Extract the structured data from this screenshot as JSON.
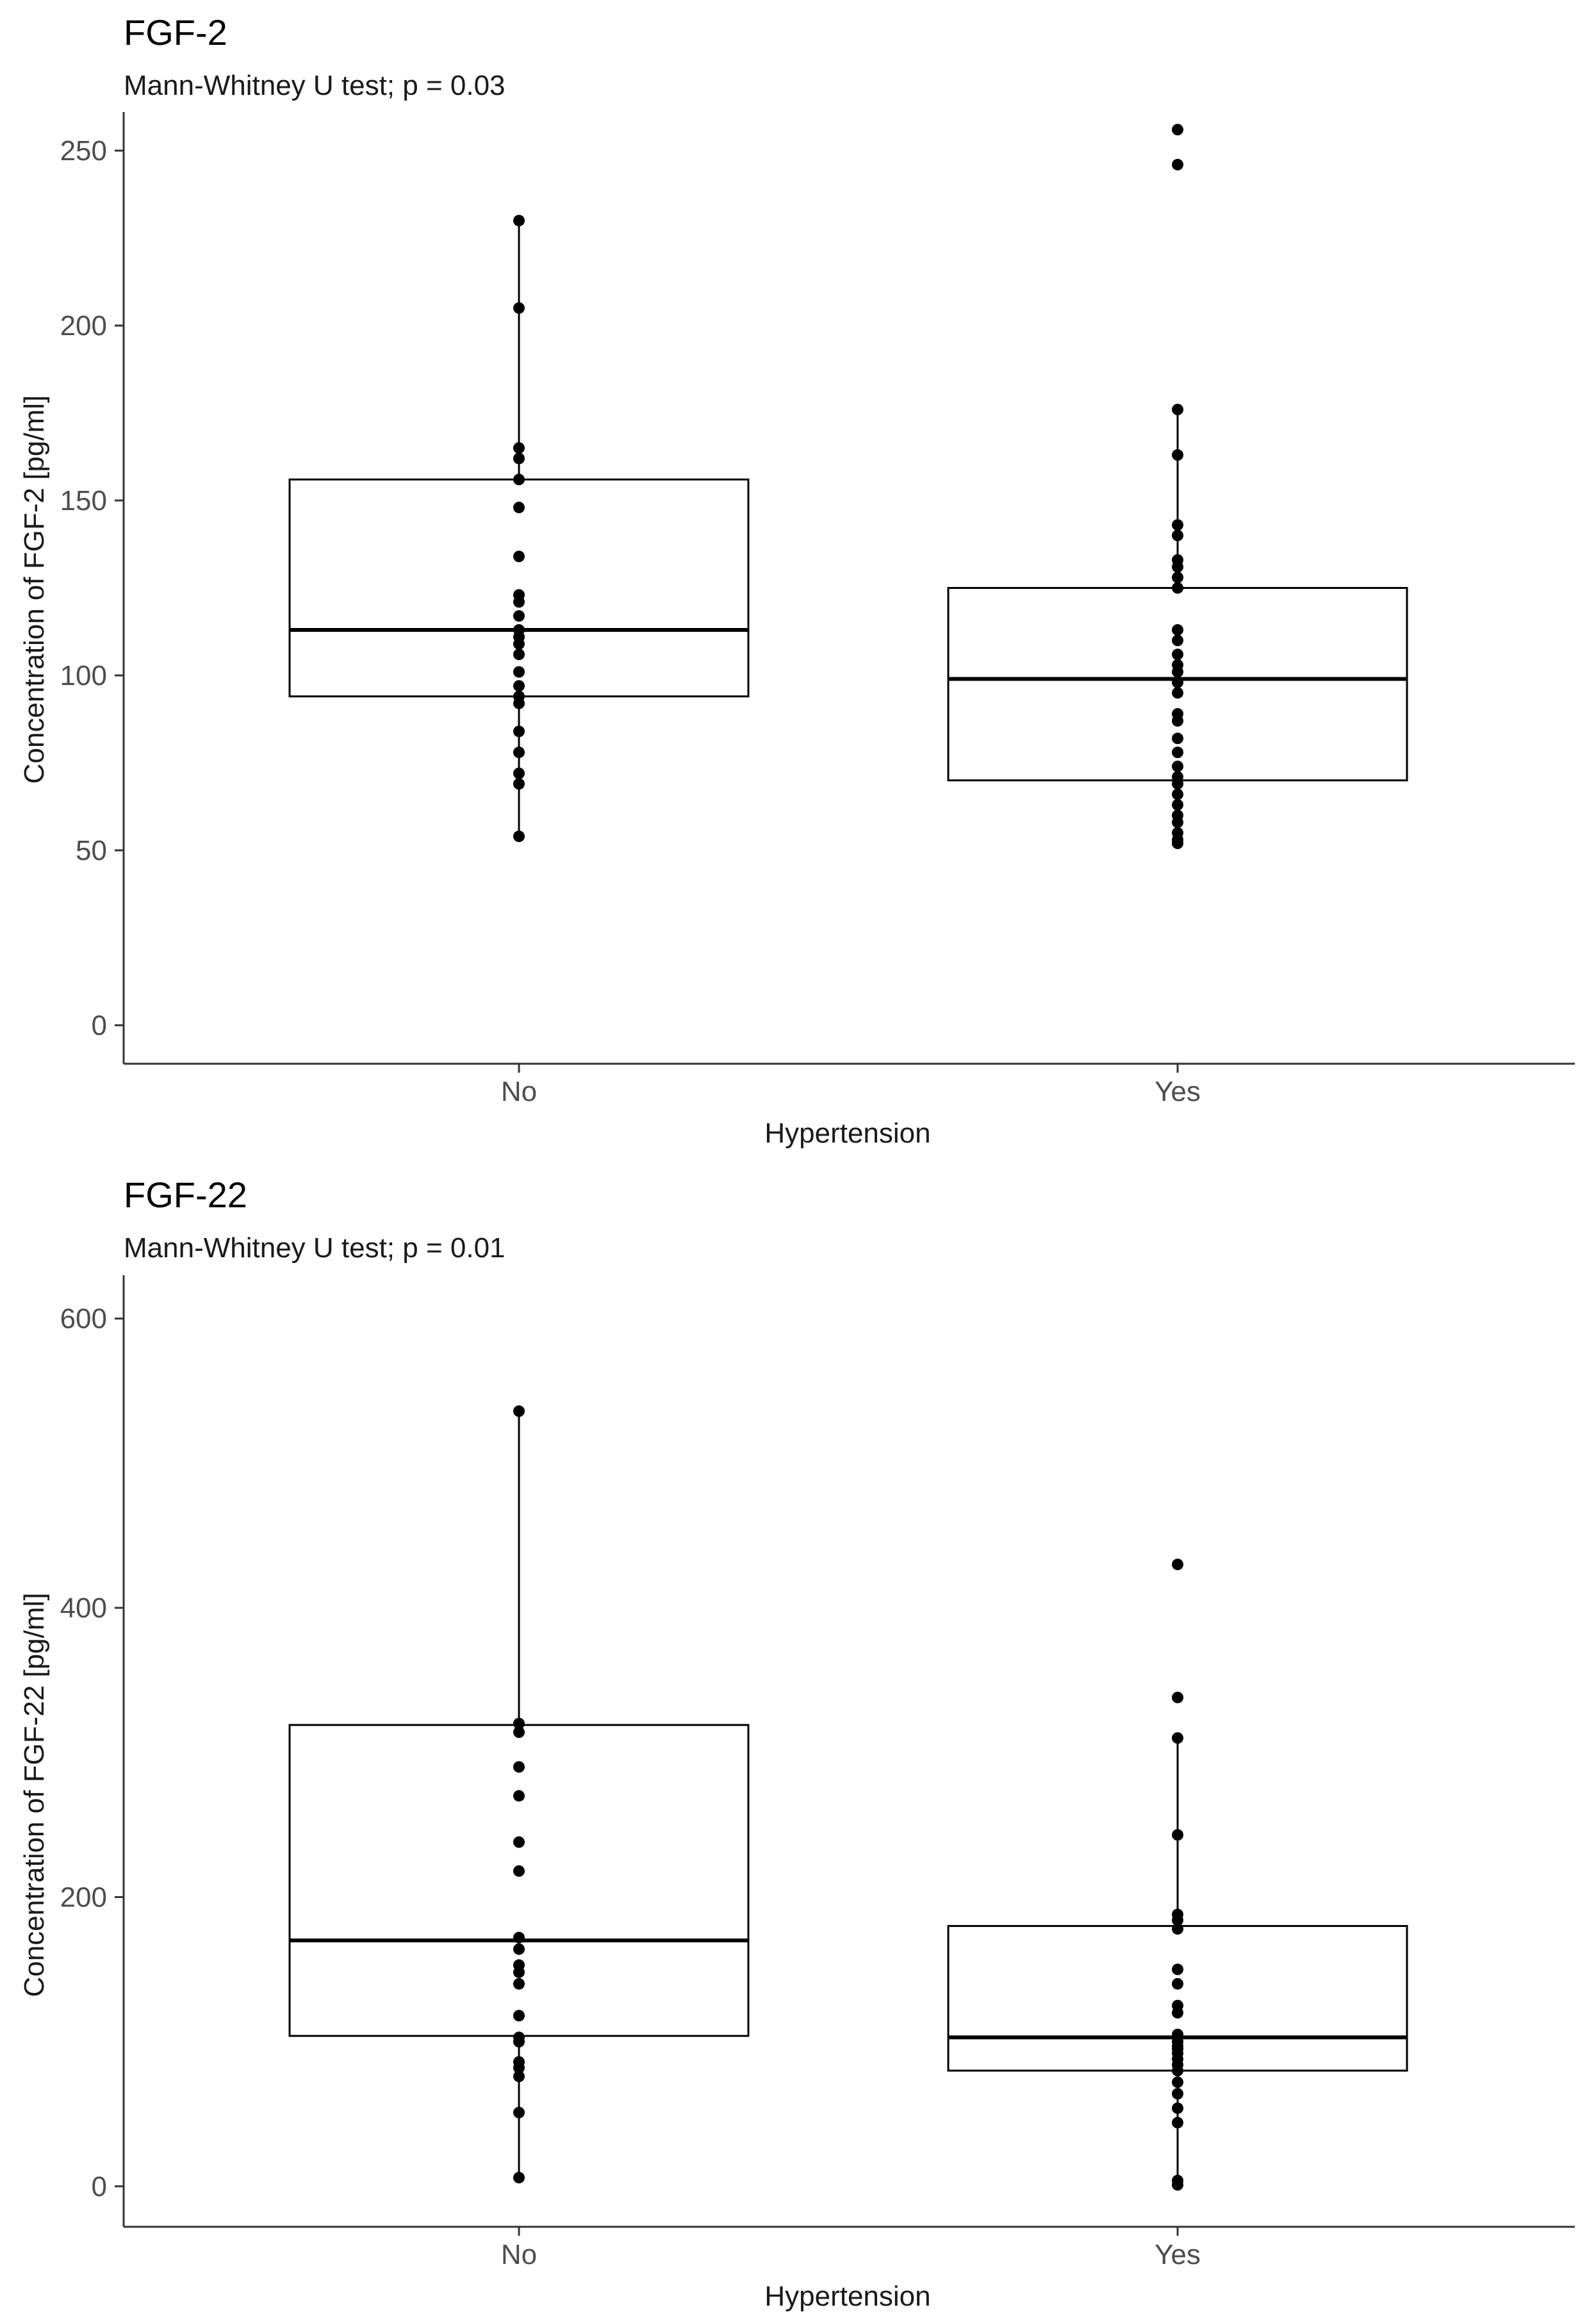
{
  "chart_data": [
    {
      "type": "boxplot",
      "title": "FGF-2",
      "subtitle": "Mann-Whitney U test; p = 0.03",
      "xlabel": "Hypertension",
      "ylabel": "Concentration of FGF-2 [pg/ml]",
      "categories": [
        "No",
        "Yes"
      ],
      "ylim": [
        -11,
        261
      ],
      "yticks": [
        0,
        50,
        100,
        150,
        200,
        250
      ],
      "grid": false,
      "boxes": [
        {
          "category": "No",
          "q1": 94,
          "median": 113,
          "q3": 156,
          "whisker_low": 54,
          "whisker_high": 230
        },
        {
          "category": "Yes",
          "q1": 70,
          "median": 99,
          "q3": 125,
          "whisker_low": 52,
          "whisker_high": 176
        }
      ],
      "points": [
        {
          "category": "No",
          "values": [
            230,
            205,
            165,
            162,
            156,
            148,
            134,
            123,
            121,
            117,
            113,
            111,
            109,
            106,
            101,
            97,
            94,
            92,
            84,
            78,
            72,
            69,
            54
          ]
        },
        {
          "category": "Yes",
          "values": [
            256,
            246,
            176,
            163,
            143,
            140,
            133,
            131,
            128,
            125,
            113,
            110,
            106,
            103,
            101,
            98,
            95,
            89,
            87,
            82,
            78,
            74,
            71,
            69,
            66,
            63,
            60,
            58,
            55,
            53,
            52
          ]
        }
      ]
    },
    {
      "type": "boxplot",
      "title": "FGF-22",
      "subtitle": "Mann-Whitney U test; p = 0.01",
      "xlabel": "Hypertension",
      "ylabel": "Concentration of FGF-22 [pg/ml]",
      "categories": [
        "No",
        "Yes"
      ],
      "ylim": [
        -28,
        630
      ],
      "yticks": [
        0,
        200,
        400,
        600
      ],
      "grid": false,
      "boxes": [
        {
          "category": "No",
          "q1": 104,
          "median": 170,
          "q3": 319,
          "whisker_low": 6,
          "whisker_high": 536
        },
        {
          "category": "Yes",
          "q1": 80,
          "median": 103,
          "q3": 180,
          "whisker_low": 2,
          "whisker_high": 310
        }
      ],
      "points": [
        {
          "category": "No",
          "values": [
            536,
            320,
            314,
            290,
            270,
            238,
            218,
            172,
            164,
            153,
            148,
            140,
            118,
            103,
            100,
            86,
            82,
            76,
            51,
            6
          ]
        },
        {
          "category": "Yes",
          "values": [
            430,
            338,
            310,
            243,
            188,
            184,
            178,
            150,
            140,
            125,
            120,
            105,
            103,
            100,
            97,
            95,
            92,
            88,
            84,
            80,
            72,
            64,
            54,
            44,
            4,
            1
          ]
        }
      ]
    }
  ]
}
